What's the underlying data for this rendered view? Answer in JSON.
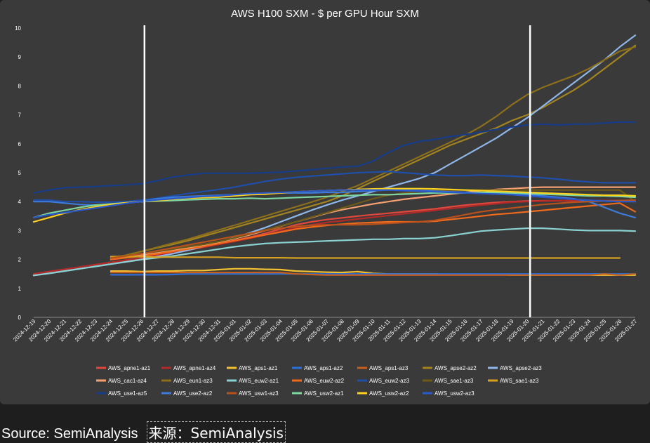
{
  "caption": {
    "source_en": "Source: SemiAnalysis",
    "source_cn": "来源：SemiAnalysis"
  },
  "chart_data": {
    "type": "line",
    "title": "AWS H100 SXM - $ per GPU Hour SXM",
    "xlabel": "",
    "ylabel": "",
    "ylim": [
      0,
      10
    ],
    "yticks": [
      0,
      1,
      2,
      3,
      4,
      5,
      6,
      7,
      8,
      9,
      10
    ],
    "grid": false,
    "legend_position": "bottom",
    "background": "#3a3a3a",
    "x": [
      "2024-12-19",
      "2024-12-20",
      "2024-12-21",
      "2024-12-22",
      "2024-12-23",
      "2024-12-24",
      "2024-12-25",
      "2024-12-26",
      "2024-12-27",
      "2024-12-28",
      "2024-12-29",
      "2024-12-30",
      "2024-12-31",
      "2025-01-01",
      "2025-01-02",
      "2025-01-03",
      "2025-01-04",
      "2025-01-05",
      "2025-01-06",
      "2025-01-07",
      "2025-01-08",
      "2025-01-09",
      "2025-01-10",
      "2025-01-11",
      "2025-01-12",
      "2025-01-13",
      "2025-01-14",
      "2025-01-15",
      "2025-01-16",
      "2025-01-17",
      "2025-01-18",
      "2025-01-19",
      "2025-01-20",
      "2025-01-21",
      "2025-01-22",
      "2025-01-23",
      "2025-01-24",
      "2025-01-25",
      "2025-01-26",
      "2025-01-27"
    ],
    "vlines": [
      "2024-12-26",
      "2025-01-20"
    ],
    "series": [
      {
        "name": "AWS_apne1-az1",
        "color": "#e0483c",
        "values": [
          1.5,
          1.58,
          1.66,
          1.74,
          1.82,
          1.9,
          1.98,
          2.05,
          2.15,
          2.25,
          2.35,
          2.45,
          2.55,
          2.66,
          2.77,
          2.9,
          3.05,
          3.2,
          3.3,
          3.38,
          3.44,
          3.5,
          3.55,
          3.6,
          3.65,
          3.7,
          3.75,
          3.82,
          3.88,
          3.93,
          3.97,
          4.0,
          4.02,
          4.03,
          4.03,
          4.03,
          4.03,
          4.03,
          4.03,
          4.03
        ]
      },
      {
        "name": "AWS_apne1-az4",
        "color": "#b02a2a",
        "values": [
          1.5,
          1.58,
          1.66,
          1.74,
          1.82,
          1.9,
          1.98,
          2.04,
          2.13,
          2.22,
          2.32,
          2.42,
          2.52,
          2.62,
          2.73,
          2.85,
          2.98,
          3.1,
          3.2,
          3.28,
          3.34,
          3.4,
          3.46,
          3.52,
          3.58,
          3.64,
          3.7,
          3.76,
          3.82,
          3.88,
          3.93,
          3.98,
          4.0,
          4.02,
          4.03,
          4.04,
          4.04,
          4.04,
          4.04,
          4.04
        ]
      },
      {
        "name": "AWS_aps1-az1",
        "color": "#f2c232",
        "values": [
          null,
          null,
          null,
          null,
          null,
          1.6,
          1.6,
          1.58,
          1.6,
          1.6,
          1.62,
          1.62,
          1.65,
          1.68,
          1.68,
          1.66,
          1.65,
          1.6,
          1.58,
          1.56,
          1.55,
          1.58,
          1.52,
          1.5,
          1.5,
          1.5,
          1.5,
          1.48,
          1.48,
          1.48,
          1.48,
          1.46,
          1.46,
          1.46,
          1.46,
          1.46,
          1.46,
          1.46,
          1.46,
          1.46
        ]
      },
      {
        "name": "AWS_aps1-az2",
        "color": "#2c6fd6",
        "values": [
          null,
          null,
          null,
          null,
          null,
          1.47,
          1.47,
          1.47,
          1.47,
          1.48,
          1.5,
          1.5,
          1.5,
          1.5,
          1.5,
          1.5,
          1.5,
          1.5,
          1.5,
          1.5,
          1.5,
          1.5,
          1.5,
          1.5,
          1.5,
          1.5,
          1.5,
          1.5,
          1.5,
          1.5,
          1.5,
          1.5,
          1.5,
          1.5,
          1.5,
          1.5,
          1.5,
          1.5,
          1.5,
          1.5
        ]
      },
      {
        "name": "AWS_aps1-az3",
        "color": "#c45f1e",
        "values": [
          null,
          null,
          null,
          null,
          null,
          1.55,
          1.55,
          1.55,
          1.55,
          1.55,
          1.55,
          1.55,
          1.55,
          1.55,
          1.55,
          1.55,
          1.55,
          1.5,
          1.48,
          1.46,
          1.46,
          1.46,
          1.46,
          1.46,
          1.46,
          1.46,
          1.46,
          1.46,
          1.46,
          1.46,
          1.46,
          1.46,
          1.46,
          1.46,
          1.46,
          1.46,
          1.46,
          1.5,
          1.46,
          1.5
        ]
      },
      {
        "name": "AWS_apse2-az2",
        "color": "#a38420",
        "values": [
          null,
          null,
          null,
          null,
          null,
          2.05,
          2.15,
          2.28,
          2.4,
          2.52,
          2.65,
          2.8,
          2.95,
          3.1,
          3.25,
          3.4,
          3.55,
          3.7,
          3.85,
          4.0,
          4.2,
          4.45,
          4.7,
          4.95,
          5.2,
          5.45,
          5.7,
          5.95,
          6.15,
          6.35,
          6.55,
          6.8,
          7.0,
          7.25,
          7.55,
          7.85,
          8.2,
          8.6,
          9.0,
          9.4
        ]
      },
      {
        "name": "AWS_apse2-az3",
        "color": "#8fb6e8",
        "values": [
          1.45,
          1.52,
          1.6,
          1.68,
          1.76,
          1.84,
          1.92,
          2.0,
          2.1,
          2.2,
          2.32,
          2.45,
          2.6,
          2.75,
          2.92,
          3.1,
          3.3,
          3.5,
          3.7,
          3.88,
          4.05,
          4.2,
          4.35,
          4.5,
          4.65,
          4.8,
          5.0,
          5.3,
          5.6,
          5.9,
          6.2,
          6.55,
          6.9,
          7.3,
          7.7,
          8.1,
          8.5,
          8.9,
          9.35,
          9.75
        ]
      },
      {
        "name": "AWS_cac1-az4",
        "color": "#f4a073",
        "values": [
          null,
          null,
          null,
          null,
          null,
          2.0,
          2.08,
          2.15,
          2.22,
          2.3,
          2.4,
          2.5,
          2.6,
          2.72,
          2.85,
          3.0,
          3.15,
          3.3,
          3.45,
          3.6,
          3.72,
          3.82,
          3.92,
          4.0,
          4.08,
          4.14,
          4.2,
          4.26,
          4.32,
          4.38,
          4.42,
          4.45,
          4.48,
          4.5,
          4.5,
          4.5,
          4.5,
          4.5,
          4.5,
          4.5
        ]
      },
      {
        "name": "AWS_eun1-az3",
        "color": "#8c6f1a",
        "values": [
          null,
          null,
          null,
          null,
          null,
          2.05,
          2.15,
          2.28,
          2.42,
          2.56,
          2.7,
          2.86,
          3.02,
          3.18,
          3.34,
          3.5,
          3.66,
          3.82,
          3.98,
          4.15,
          4.35,
          4.55,
          4.8,
          5.05,
          5.3,
          5.55,
          5.8,
          6.05,
          6.3,
          6.6,
          6.95,
          7.35,
          7.7,
          7.95,
          8.15,
          8.35,
          8.6,
          8.9,
          9.2,
          9.35
        ]
      },
      {
        "name": "AWS_euw2-az1",
        "color": "#8ad1d1",
        "values": [
          1.45,
          1.52,
          1.6,
          1.68,
          1.76,
          1.84,
          1.92,
          2.0,
          2.06,
          2.12,
          2.2,
          2.28,
          2.36,
          2.44,
          2.5,
          2.55,
          2.58,
          2.6,
          2.62,
          2.64,
          2.66,
          2.68,
          2.7,
          2.7,
          2.72,
          2.72,
          2.75,
          2.82,
          2.9,
          2.98,
          3.02,
          3.05,
          3.08,
          3.08,
          3.05,
          3.02,
          3.0,
          3.0,
          3.0,
          2.98
        ]
      },
      {
        "name": "AWS_euw2-az2",
        "color": "#f06a1c",
        "values": [
          null,
          null,
          null,
          null,
          null,
          2.0,
          2.06,
          2.12,
          2.2,
          2.28,
          2.36,
          2.45,
          2.55,
          2.65,
          2.75,
          2.85,
          2.95,
          3.05,
          3.12,
          3.18,
          3.22,
          3.26,
          3.28,
          3.3,
          3.3,
          3.3,
          3.32,
          3.38,
          3.44,
          3.5,
          3.56,
          3.6,
          3.65,
          3.7,
          3.75,
          3.8,
          3.85,
          3.9,
          3.95,
          3.65
        ]
      },
      {
        "name": "AWS_euw2-az3",
        "color": "#1f4fa8",
        "values": [
          4.05,
          4.05,
          4.0,
          4.0,
          3.98,
          3.98,
          4.0,
          4.05,
          4.12,
          4.2,
          4.28,
          4.35,
          4.42,
          4.5,
          4.6,
          4.7,
          4.78,
          4.84,
          4.88,
          4.92,
          4.96,
          5.0,
          5.02,
          5.04,
          5.0,
          4.96,
          4.92,
          4.9,
          4.9,
          4.92,
          4.9,
          4.88,
          4.85,
          4.82,
          4.78,
          4.72,
          4.68,
          4.65,
          4.65,
          4.65
        ]
      },
      {
        "name": "AWS_sae1-az3",
        "color": "#6e5a18",
        "values": [
          null,
          null,
          null,
          null,
          null,
          2.05,
          2.12,
          2.2,
          2.28,
          2.36,
          2.44,
          2.52,
          2.62,
          2.74,
          2.88,
          3.02,
          3.16,
          3.3,
          3.46,
          3.62,
          3.78,
          3.94,
          4.1,
          4.22,
          4.3,
          4.35,
          4.38,
          4.4,
          4.4,
          4.4,
          4.4,
          4.4,
          4.4,
          4.4,
          4.4,
          4.4,
          4.4,
          4.4,
          4.4,
          4.0
        ]
      },
      {
        "name": "AWS_sae1-az3",
        "color": "#d6a21e",
        "values": [
          null,
          null,
          null,
          null,
          null,
          2.1,
          2.1,
          2.1,
          2.08,
          2.08,
          2.08,
          2.08,
          2.08,
          2.06,
          2.06,
          2.06,
          2.06,
          2.05,
          2.05,
          2.05,
          2.05,
          2.05,
          2.05,
          2.05,
          2.05,
          2.05,
          2.05,
          2.05,
          2.05,
          2.05,
          2.05,
          2.05,
          2.05,
          2.05,
          2.05,
          2.05,
          2.05,
          2.05,
          2.05,
          null
        ]
      },
      {
        "name": "AWS_use1-az5",
        "color": "#173c87",
        "values": [
          4.3,
          4.4,
          4.48,
          4.5,
          4.52,
          4.55,
          4.58,
          4.62,
          4.72,
          4.85,
          4.92,
          4.98,
          4.98,
          4.98,
          4.98,
          5.0,
          5.02,
          5.06,
          5.1,
          5.15,
          5.2,
          5.22,
          5.4,
          5.7,
          5.95,
          6.08,
          6.15,
          6.25,
          6.32,
          6.4,
          6.5,
          6.58,
          6.65,
          6.68,
          6.65,
          6.68,
          6.68,
          6.72,
          6.75,
          6.75
        ]
      },
      {
        "name": "AWS_use2-az2",
        "color": "#3d7bd8",
        "values": [
          4.0,
          4.0,
          3.95,
          3.9,
          3.88,
          3.9,
          3.95,
          4.0,
          4.1,
          4.15,
          4.18,
          4.2,
          4.22,
          4.24,
          4.26,
          4.28,
          4.3,
          4.3,
          4.3,
          4.32,
          4.32,
          4.35,
          4.38,
          4.4,
          4.4,
          4.38,
          4.36,
          4.34,
          4.32,
          4.3,
          4.28,
          4.26,
          4.24,
          4.2,
          4.15,
          4.1,
          4.0,
          3.8,
          3.6,
          3.45
        ]
      },
      {
        "name": "AWS_usw1-az3",
        "color": "#b8521c",
        "values": [
          null,
          null,
          null,
          null,
          null,
          2.05,
          2.12,
          2.2,
          2.3,
          2.4,
          2.5,
          2.6,
          2.7,
          2.8,
          2.9,
          3.0,
          3.08,
          3.14,
          3.18,
          3.2,
          3.2,
          3.2,
          3.22,
          3.25,
          3.28,
          3.3,
          3.35,
          3.45,
          3.55,
          3.65,
          3.72,
          3.78,
          3.84,
          3.9,
          3.94,
          3.98,
          4.0,
          4.02,
          4.04,
          4.05
        ]
      },
      {
        "name": "AWS_usw2-az1",
        "color": "#7dd6a0",
        "values": [
          3.45,
          3.6,
          3.7,
          3.8,
          3.88,
          3.92,
          3.96,
          4.0,
          4.02,
          4.04,
          4.06,
          4.08,
          4.1,
          4.1,
          4.12,
          4.1,
          4.12,
          4.14,
          4.16,
          4.18,
          4.2,
          4.22,
          4.24,
          4.24,
          4.26,
          4.28,
          4.3,
          4.3,
          4.3,
          4.32,
          4.32,
          4.3,
          4.28,
          4.26,
          4.24,
          4.22,
          4.2,
          4.2,
          4.18,
          4.15
        ]
      },
      {
        "name": "AWS_usw2-az2",
        "color": "#ffd21f",
        "values": [
          3.3,
          3.45,
          3.6,
          3.72,
          3.82,
          3.9,
          3.96,
          4.0,
          4.04,
          4.08,
          4.12,
          4.14,
          4.16,
          4.2,
          4.24,
          4.26,
          4.3,
          4.34,
          4.36,
          4.38,
          4.4,
          4.42,
          4.44,
          4.45,
          4.45,
          4.45,
          4.44,
          4.42,
          4.4,
          4.38,
          4.36,
          4.34,
          4.32,
          4.3,
          4.28,
          4.26,
          4.24,
          4.22,
          4.22,
          4.2
        ]
      },
      {
        "name": "AWS_usw2-az3",
        "color": "#2a58c8",
        "values": [
          3.45,
          3.55,
          3.62,
          3.7,
          3.78,
          3.86,
          3.94,
          4.0,
          4.06,
          4.1,
          4.14,
          4.18,
          4.2,
          4.24,
          4.28,
          4.3,
          4.32,
          4.34,
          4.36,
          4.38,
          4.4,
          4.4,
          4.4,
          4.4,
          4.38,
          4.36,
          4.34,
          4.32,
          4.3,
          4.28,
          4.26,
          4.24,
          4.2,
          4.16,
          4.12,
          4.08,
          4.05,
          4.02,
          4.0,
          4.0
        ]
      }
    ]
  }
}
